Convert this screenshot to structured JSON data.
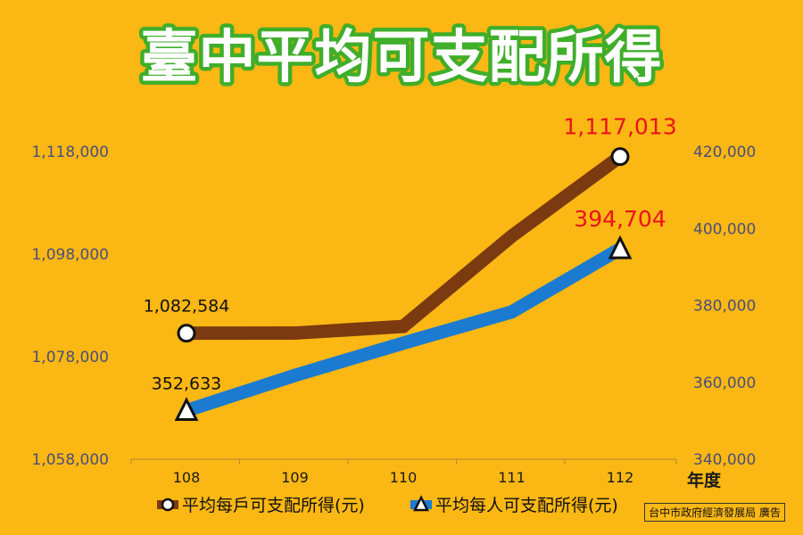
{
  "title": "臺中平均可支配所得",
  "footnote": "台中市政府經濟發展局 廣告",
  "colors": {
    "background": "#FBB714",
    "household_line": "#7B3A10",
    "person_line": "#1B7BD0",
    "highlight_label": "#E8141B",
    "title_outline": "#3FAE2A"
  },
  "chart_data": {
    "type": "line",
    "title": "臺中平均可支配所得",
    "xlabel": "年度",
    "categories": [
      "108",
      "109",
      "110",
      "111",
      "112"
    ],
    "y_left": {
      "ticks": [
        "1,058,000",
        "1,078,000",
        "1,098,000",
        "1,118,000"
      ],
      "range": [
        1058000,
        1118000
      ]
    },
    "y_right": {
      "ticks": [
        "340,000",
        "360,000",
        "380,000",
        "400,000",
        "420,000"
      ],
      "range": [
        340000,
        420000
      ]
    },
    "grid": false,
    "legend_position": "bottom",
    "series": [
      {
        "name": "平均每戶可支配所得(元)",
        "axis": "left",
        "marker": "circle",
        "color": "#7B3A10",
        "values": [
          1082584,
          1082600,
          1083900,
          1101500,
          1117013
        ],
        "labels": [
          {
            "index": 0,
            "text": "1,082,584",
            "color": "#111111"
          },
          {
            "index": 4,
            "text": "1,117,013",
            "color": "#E8141B"
          }
        ]
      },
      {
        "name": "平均每人可支配所得(元)",
        "axis": "right",
        "marker": "triangle",
        "color": "#1B7BD0",
        "values": [
          352633,
          361800,
          370200,
          378300,
          394704
        ],
        "labels": [
          {
            "index": 0,
            "text": "352,633",
            "color": "#111111"
          },
          {
            "index": 4,
            "text": "394,704",
            "color": "#E8141B"
          }
        ]
      }
    ]
  }
}
